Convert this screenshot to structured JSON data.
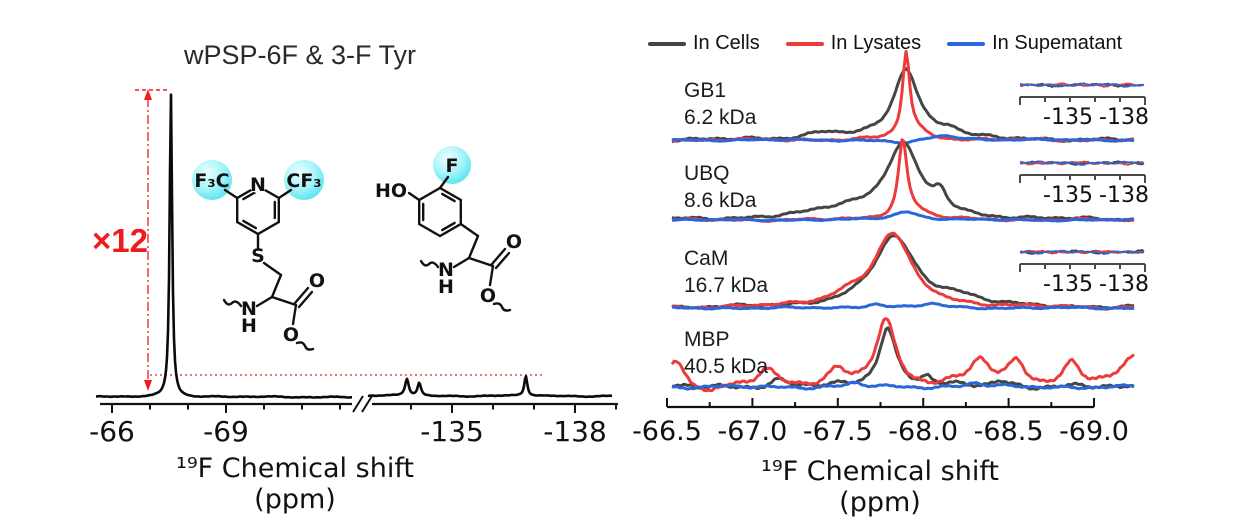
{
  "colors": {
    "spectrum_black": "#0a0a0a",
    "annotation_red": "#ee1c1c",
    "highlight_cyan_stops": [
      "#eefeff",
      "#a5f4f9",
      "#4fe3ef"
    ],
    "inset_axis_gray": "#4a4a4a"
  },
  "molecules": {
    "wpsp6f": {
      "f3c": "F₃C",
      "n": "N",
      "cf3": "CF₃",
      "s": "S",
      "nh_n": "N",
      "nh_h": "H",
      "o_carbonyl": "O",
      "o_ester": "O"
    },
    "tyr3f": {
      "ho": "HO",
      "f": "F",
      "nh_n": "N",
      "nh_h": "H",
      "o_carbonyl": "O",
      "o_ester": "O"
    }
  },
  "chart_data": [
    {
      "id": "left-broken-axis-spectrum",
      "type": "line",
      "title": "wPSP-6F & 3-F Tyr",
      "xlabel": "¹⁹F Chemical shift (ppm)",
      "annotation_label": "×12",
      "axis_break": true,
      "segments": [
        {
          "xlim": [
            -65.7,
            -72.3
          ],
          "major_ticks": [
            -66,
            -69
          ],
          "major_tick_labels": [
            "-66",
            "-69"
          ],
          "minor_ticks": [
            -67,
            -68,
            -70,
            -71,
            -72
          ]
        },
        {
          "xlim": [
            -132.9,
            -139.0
          ],
          "major_ticks": [
            -135,
            -138
          ],
          "major_tick_labels": [
            "-135",
            "-138"
          ],
          "minor_ticks": [
            -134,
            -136,
            -137,
            -139
          ]
        }
      ],
      "series": [
        {
          "name": "wPSP-6F & 3-F Tyr spectrum",
          "color_key": "spectrum_black",
          "peaks": [
            {
              "ppm": -67.55,
              "height": 1.0,
              "width": 0.08
            },
            {
              "ppm": -133.9,
              "height": 0.056,
              "width": 0.11
            },
            {
              "ppm": -134.2,
              "height": 0.043,
              "width": 0.1
            },
            {
              "ppm": -136.8,
              "height": 0.066,
              "width": 0.09
            }
          ],
          "noise": 0.003
        }
      ]
    },
    {
      "id": "right-stacked-spectra",
      "type": "line",
      "xlabel": "¹⁹F Chemical shift (ppm)",
      "xlim": [
        -66.5,
        -69.0
      ],
      "major_ticks": [
        -66.5,
        -67.0,
        -67.5,
        -68.0,
        -68.5,
        -69.0
      ],
      "major_tick_labels": [
        "-66.5",
        "-67.0",
        "-67.5",
        "-68.0",
        "-68.5",
        "-69.0"
      ],
      "minor_ticks": [
        -66.75,
        -67.25,
        -67.75,
        -68.25,
        -68.75
      ],
      "legend": [
        {
          "label": "In Cells",
          "color": "#454545"
        },
        {
          "label": "In Lysates",
          "color": "#ee3a3a"
        },
        {
          "label": "In Supematant",
          "color": "#2a68da"
        }
      ],
      "rows": [
        {
          "protein": "GB1",
          "mass": "6.2 kDa",
          "inset": {
            "tick_labels": [
              "-135",
              "-138"
            ]
          },
          "series": [
            {
              "legend": "In Cells",
              "peaks": [
                {
                  "ppm": -67.9,
                  "height": 0.85,
                  "width": 0.18
                },
                {
                  "ppm": -67.42,
                  "height": 0.08,
                  "width": 0.25
                },
                {
                  "ppm": -68.15,
                  "height": 0.1,
                  "width": 0.15
                }
              ],
              "noise": 0.03,
              "seed": 1
            },
            {
              "legend": "In Lysates",
              "peaks": [
                {
                  "ppm": -67.9,
                  "height": 1.0,
                  "width": 0.05
                },
                {
                  "ppm": -67.95,
                  "height": 0.1,
                  "width": 0.18
                }
              ],
              "noise": 0.025,
              "seed": 2
            },
            {
              "legend": "In Supematant",
              "peaks": [
                {
                  "ppm": -67.9,
                  "height": -0.05,
                  "width": 0.18
                },
                {
                  "ppm": -68.12,
                  "height": 0.06,
                  "width": 0.22
                }
              ],
              "noise": 0.016,
              "seed": 3
            }
          ]
        },
        {
          "protein": "UBQ",
          "mass": "8.6 kDa",
          "inset": {
            "tick_labels": [
              "-135",
              "-138"
            ]
          },
          "series": [
            {
              "legend": "In Cells",
              "peaks": [
                {
                  "ppm": -67.88,
                  "height": 0.88,
                  "width": 0.24
                },
                {
                  "ppm": -67.55,
                  "height": 0.12,
                  "width": 0.5
                },
                {
                  "ppm": -68.1,
                  "height": 0.2,
                  "width": 0.09
                }
              ],
              "noise": 0.028,
              "seed": 4
            },
            {
              "legend": "In Lysates",
              "peaks": [
                {
                  "ppm": -67.88,
                  "height": 0.92,
                  "width": 0.06
                },
                {
                  "ppm": -67.95,
                  "height": 0.1,
                  "width": 0.2
                }
              ],
              "noise": 0.022,
              "seed": 5
            },
            {
              "legend": "In Supematant",
              "peaks": [
                {
                  "ppm": -67.9,
                  "height": 0.1,
                  "width": 0.18
                }
              ],
              "noise": 0.015,
              "seed": 6
            }
          ]
        },
        {
          "protein": "CaM",
          "mass": "16.7 kDa",
          "inset": {
            "tick_labels": [
              "-135",
              "-138"
            ]
          },
          "series": [
            {
              "legend": "In Cells",
              "peaks": [
                {
                  "ppm": -67.83,
                  "height": 0.85,
                  "width": 0.3
                },
                {
                  "ppm": -68.2,
                  "height": 0.1,
                  "width": 0.3
                }
              ],
              "noise": 0.028,
              "seed": 7
            },
            {
              "legend": "In Lysates",
              "peaks": [
                {
                  "ppm": -67.82,
                  "height": 0.88,
                  "width": 0.27
                },
                {
                  "ppm": -67.55,
                  "height": 0.1,
                  "width": 0.25
                }
              ],
              "noise": 0.028,
              "seed": 8
            },
            {
              "legend": "In Supematant",
              "peaks": [
                {
                  "ppm": -67.72,
                  "height": 0.05,
                  "width": 0.12
                },
                {
                  "ppm": -68.05,
                  "height": 0.05,
                  "width": 0.15
                }
              ],
              "noise": 0.018,
              "seed": 9
            }
          ]
        },
        {
          "protein": "MBP",
          "mass": "40.5 kDa",
          "series": [
            {
              "legend": "In Cells",
              "peaks": [
                {
                  "ppm": -67.79,
                  "height": 0.72,
                  "width": 0.12
                },
                {
                  "ppm": -67.15,
                  "height": 0.08,
                  "width": 0.12
                },
                {
                  "ppm": -68.02,
                  "height": 0.1,
                  "width": 0.08
                },
                {
                  "ppm": -68.45,
                  "height": 0.08,
                  "width": 0.12
                }
              ],
              "noise": 0.05,
              "seed": 10
            },
            {
              "legend": "In Lysates",
              "peaks": [
                {
                  "ppm": -67.78,
                  "height": 0.8,
                  "width": 0.14
                },
                {
                  "ppm": -66.55,
                  "height": 0.3,
                  "width": 0.12
                },
                {
                  "ppm": -66.75,
                  "height": -0.12,
                  "width": 0.12
                },
                {
                  "ppm": -67.08,
                  "height": 0.22,
                  "width": 0.15
                },
                {
                  "ppm": -67.5,
                  "height": 0.16,
                  "width": 0.12
                },
                {
                  "ppm": -68.33,
                  "height": 0.3,
                  "width": 0.15
                },
                {
                  "ppm": -68.55,
                  "height": 0.28,
                  "width": 0.12
                },
                {
                  "ppm": -68.87,
                  "height": 0.26,
                  "width": 0.12
                },
                {
                  "ppm": -69.25,
                  "height": 0.35,
                  "width": 0.2
                }
              ],
              "noise": 0.06,
              "seed": 11
            },
            {
              "legend": "In Supematant",
              "peaks": [
                {
                  "ppm": -67.6,
                  "height": 0.05,
                  "width": 0.1
                },
                {
                  "ppm": -68.3,
                  "height": 0.05,
                  "width": 0.12
                }
              ],
              "noise": 0.03,
              "seed": 12
            }
          ]
        }
      ]
    }
  ]
}
